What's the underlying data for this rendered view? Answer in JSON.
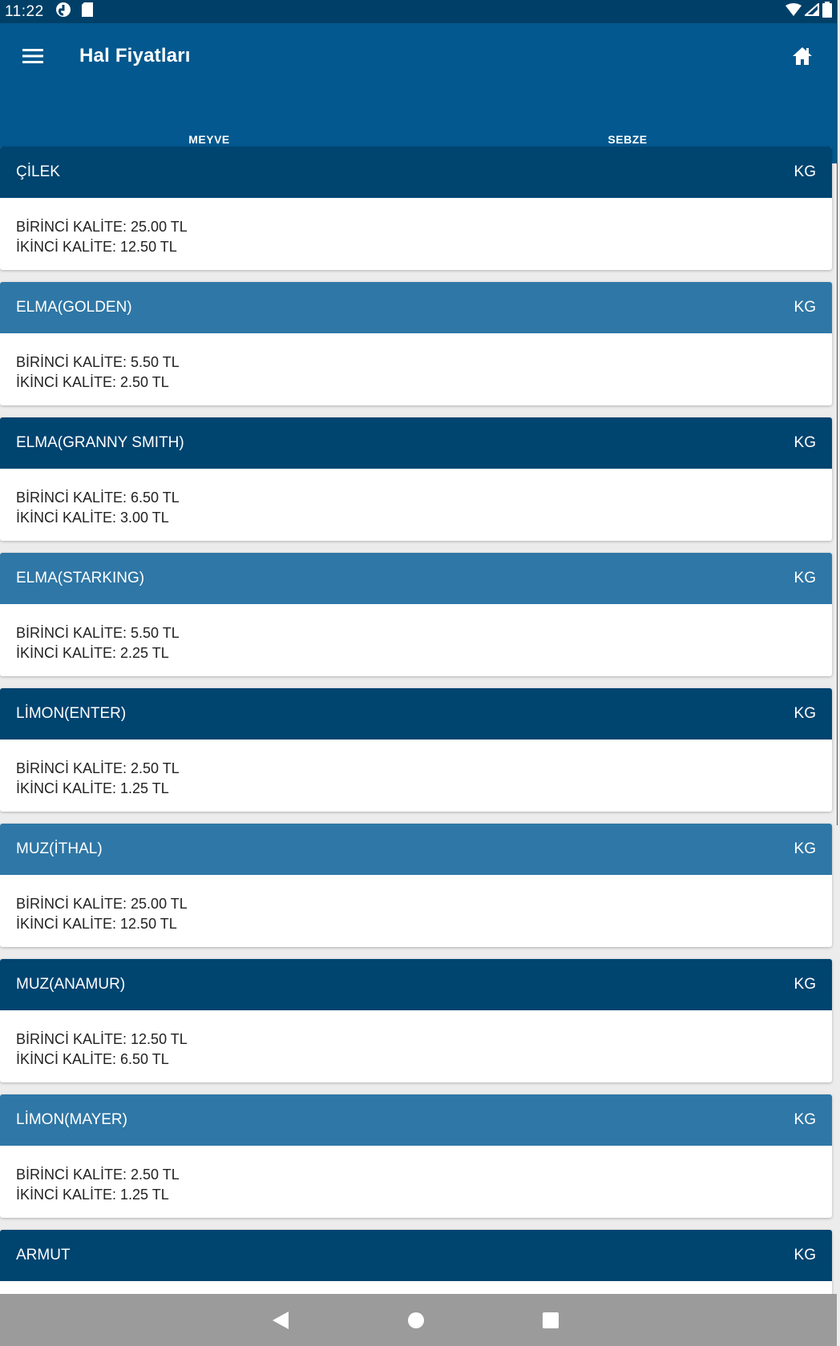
{
  "status_bar": {
    "time": "11:22"
  },
  "app_bar": {
    "title": "Hal Fiyatları"
  },
  "tabs": [
    {
      "label": "MEYVE",
      "active": true
    },
    {
      "label": "SEBZE",
      "active": false
    }
  ],
  "products": [
    {
      "name": "ÇİLEK",
      "unit": "KG",
      "first": "BİRİNCİ KALİTE: 25.00 TL",
      "second": "İKİNCİ KALİTE: 12.50 TL"
    },
    {
      "name": "ELMA(GOLDEN)",
      "unit": "KG",
      "first": "BİRİNCİ KALİTE: 5.50 TL",
      "second": "İKİNCİ KALİTE: 2.50 TL"
    },
    {
      "name": "ELMA(GRANNY SMITH)",
      "unit": "KG",
      "first": "BİRİNCİ KALİTE: 6.50 TL",
      "second": "İKİNCİ KALİTE: 3.00 TL"
    },
    {
      "name": "ELMA(STARKING)",
      "unit": "KG",
      "first": "BİRİNCİ KALİTE: 5.50 TL",
      "second": "İKİNCİ KALİTE: 2.25 TL"
    },
    {
      "name": "LİMON(ENTER)",
      "unit": "KG",
      "first": "BİRİNCİ KALİTE: 2.50 TL",
      "second": "İKİNCİ KALİTE: 1.25 TL"
    },
    {
      "name": "MUZ(İTHAL)",
      "unit": "KG",
      "first": "BİRİNCİ KALİTE: 25.00 TL",
      "second": "İKİNCİ KALİTE: 12.50 TL"
    },
    {
      "name": "MUZ(ANAMUR)",
      "unit": "KG",
      "first": "BİRİNCİ KALİTE: 12.50 TL",
      "second": "İKİNCİ KALİTE: 6.50 TL"
    },
    {
      "name": "LİMON(MAYER)",
      "unit": "KG",
      "first": "BİRİNCİ KALİTE: 2.50 TL",
      "second": "İKİNCİ KALİTE: 1.25 TL"
    },
    {
      "name": "ARMUT",
      "unit": "KG",
      "first": "",
      "second": ""
    }
  ],
  "colors": {
    "header_dark": "#004470",
    "header_light": "#2f77a6",
    "app_bar": "#02588f",
    "status_bar": "#004068"
  }
}
